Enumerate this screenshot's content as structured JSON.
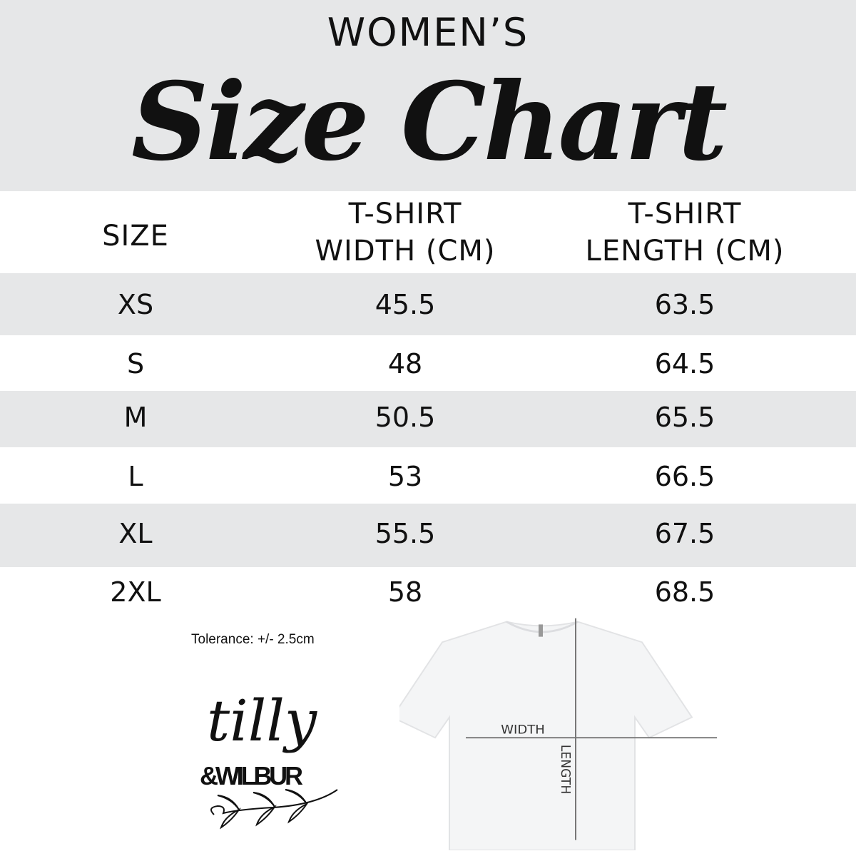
{
  "header": {
    "eyebrow": "WOMEN’S",
    "title": "Size Chart"
  },
  "table": {
    "columns": [
      "SIZE",
      "T-SHIRT\nWIDTH (CM)",
      "T-SHIRT\nLENGTH (CM)"
    ],
    "column_lines": [
      [
        "SIZE"
      ],
      [
        "T-SHIRT",
        "WIDTH (CM)"
      ],
      [
        "T-SHIRT",
        "LENGTH (CM)"
      ]
    ],
    "rows": [
      {
        "size": "XS",
        "width": "45.5",
        "length": "63.5"
      },
      {
        "size": "S",
        "width": "48",
        "length": "64.5"
      },
      {
        "size": "M",
        "width": "50.5",
        "length": "65.5"
      },
      {
        "size": "L",
        "width": "53",
        "length": "66.5"
      },
      {
        "size": "XL",
        "width": "55.5",
        "length": "67.5"
      },
      {
        "size": "2XL",
        "width": "58",
        "length": "68.5"
      }
    ]
  },
  "tolerance": "Tolerance: +/- 2.5cm",
  "logo": {
    "line1": "tilly",
    "line2": "&WILBUR"
  },
  "diagram": {
    "width_label": "WIDTH",
    "length_label": "LENGTH"
  },
  "colors": {
    "band": "#e6e7e8",
    "text": "#111111",
    "measure_line": "#777777"
  }
}
